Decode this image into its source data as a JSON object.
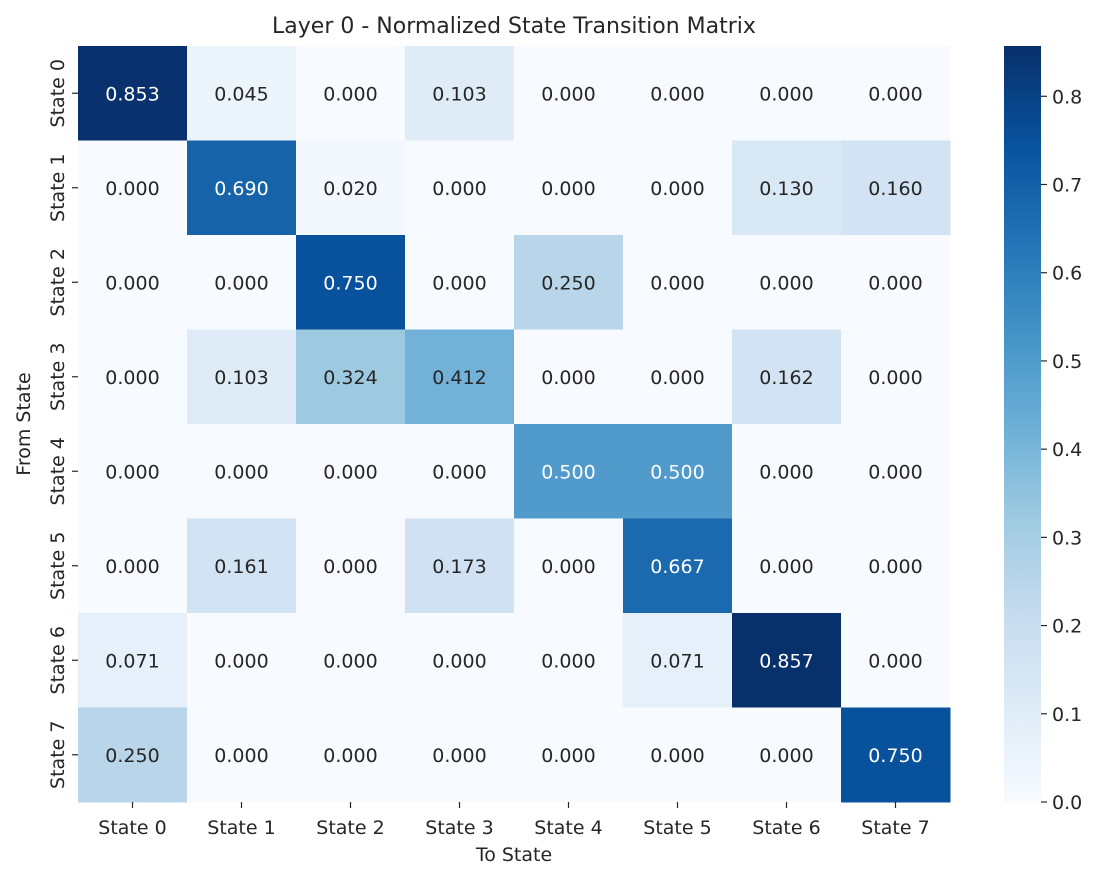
{
  "chart_data": {
    "type": "heatmap",
    "title": "Layer 0 - Normalized State Transition Matrix",
    "xlabel": "To State",
    "ylabel": "From State",
    "x_categories": [
      "State 0",
      "State 1",
      "State 2",
      "State 3",
      "State 4",
      "State 5",
      "State 6",
      "State 7"
    ],
    "y_categories": [
      "State 0",
      "State 1",
      "State 2",
      "State 3",
      "State 4",
      "State 5",
      "State 6",
      "State 7"
    ],
    "values": [
      [
        0.853,
        0.045,
        0.0,
        0.103,
        0.0,
        0.0,
        0.0,
        0.0
      ],
      [
        0.0,
        0.69,
        0.02,
        0.0,
        0.0,
        0.0,
        0.13,
        0.16
      ],
      [
        0.0,
        0.0,
        0.75,
        0.0,
        0.25,
        0.0,
        0.0,
        0.0
      ],
      [
        0.0,
        0.103,
        0.324,
        0.412,
        0.0,
        0.0,
        0.162,
        0.0
      ],
      [
        0.0,
        0.0,
        0.0,
        0.0,
        0.5,
        0.5,
        0.0,
        0.0
      ],
      [
        0.0,
        0.161,
        0.0,
        0.173,
        0.0,
        0.667,
        0.0,
        0.0
      ],
      [
        0.071,
        0.0,
        0.0,
        0.0,
        0.0,
        0.071,
        0.857,
        0.0
      ],
      [
        0.25,
        0.0,
        0.0,
        0.0,
        0.0,
        0.0,
        0.0,
        0.75
      ]
    ],
    "value_format": "0.000",
    "colormap": "Blues",
    "color_low": "#f7fbff",
    "color_high": "#08306b",
    "colorbar": {
      "range": [
        0.0,
        0.857
      ],
      "ticks": [
        "0.0",
        "0.1",
        "0.2",
        "0.3",
        "0.4",
        "0.5",
        "0.6",
        "0.7",
        "0.8"
      ]
    },
    "text_color_dark": "#262626",
    "text_color_light": "#ffffff"
  }
}
